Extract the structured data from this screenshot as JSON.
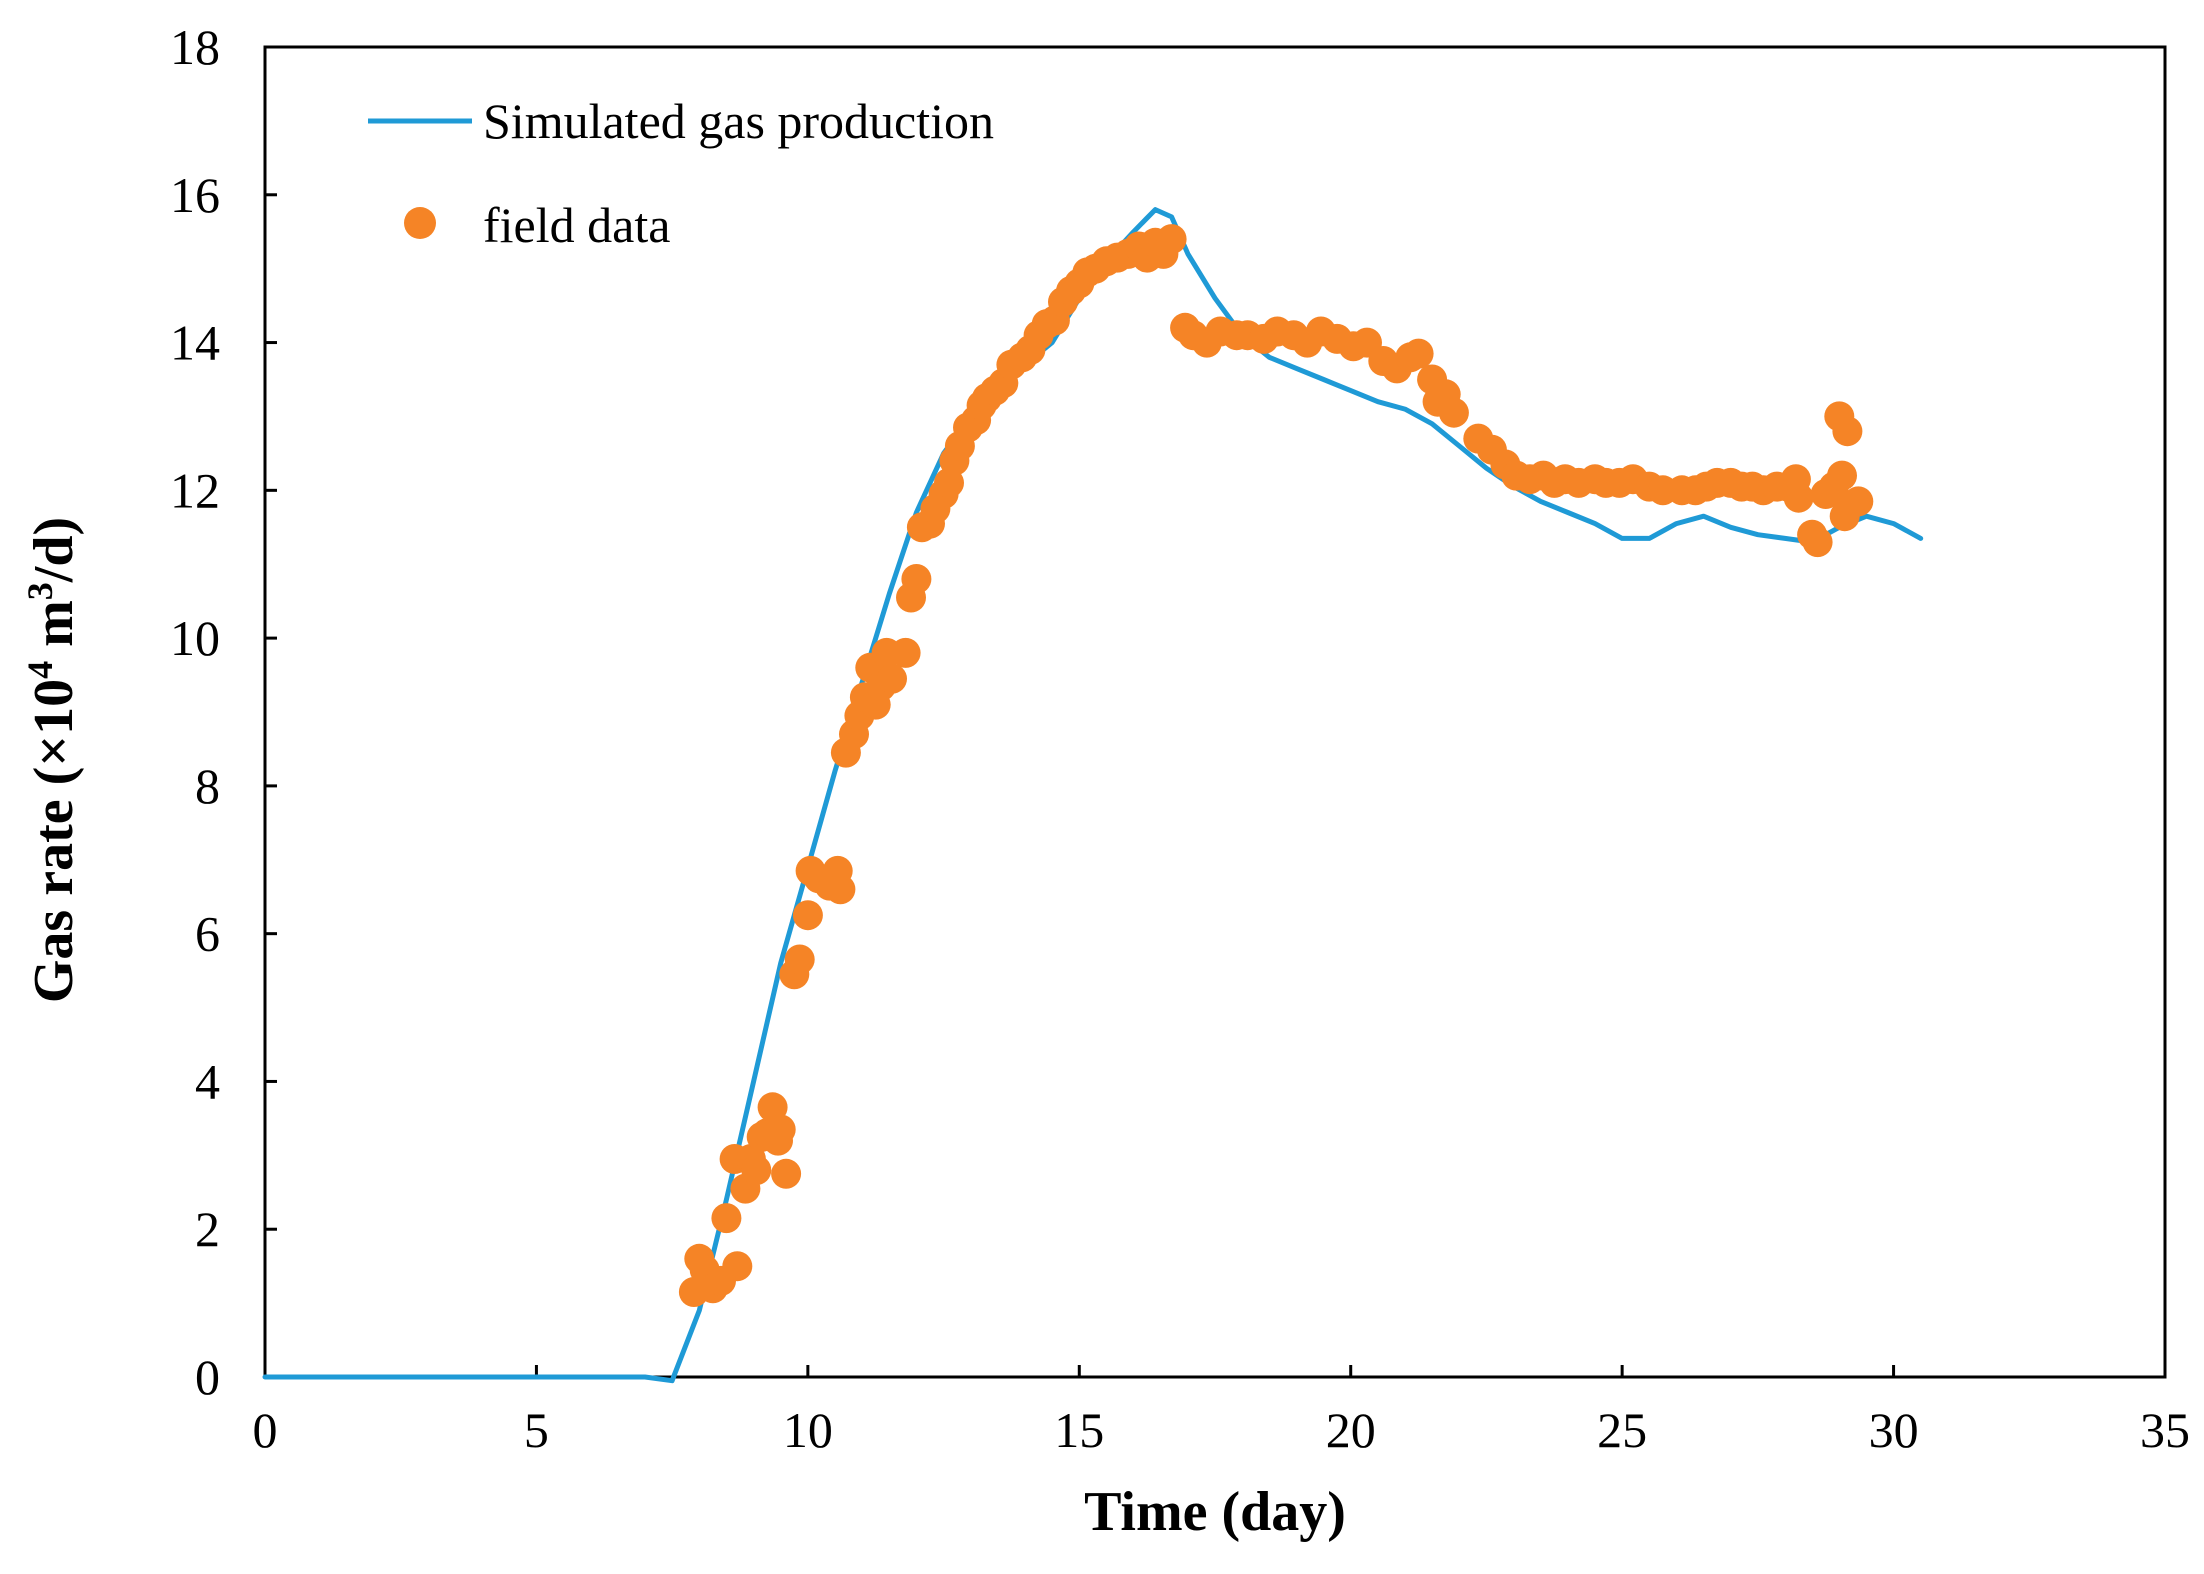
{
  "chart_data": {
    "type": "line",
    "xlabel": "Time (day)",
    "ylabel_main": "Gas rate (×10",
    "ylabel_sup1": "4",
    "ylabel_mid": " m",
    "ylabel_sup2": "3",
    "ylabel_end": "/d)",
    "xlim": [
      0,
      35
    ],
    "ylim": [
      0,
      18
    ],
    "xticks": [
      0,
      5,
      10,
      15,
      20,
      25,
      30,
      35
    ],
    "yticks": [
      0,
      2,
      4,
      6,
      8,
      10,
      12,
      14,
      16,
      18
    ],
    "grid": false,
    "legend_position": "top-left",
    "colors": {
      "simulated": "#1f9ad6",
      "field": "#f58426"
    },
    "series": [
      {
        "name": "Simulated gas production",
        "kind": "line",
        "x": [
          0,
          6.5,
          7.0,
          7.5,
          8.0,
          8.5,
          9.0,
          9.5,
          10.0,
          10.5,
          11.0,
          11.5,
          12.0,
          12.5,
          13.0,
          13.5,
          14.0,
          14.5,
          15.0,
          15.5,
          16.0,
          16.4,
          16.7,
          17.0,
          17.5,
          18.0,
          18.5,
          19.0,
          19.5,
          20.0,
          20.5,
          21.0,
          21.5,
          22.0,
          22.5,
          23.0,
          23.5,
          24.0,
          24.5,
          25.0,
          25.5,
          26.0,
          26.5,
          27.0,
          27.5,
          28.0,
          28.5,
          29.0,
          29.5,
          30.0,
          30.5
        ],
        "y": [
          0,
          0,
          0,
          -0.05,
          0.9,
          2.4,
          4.0,
          5.6,
          6.9,
          8.2,
          9.4,
          10.6,
          11.7,
          12.5,
          13.0,
          13.4,
          13.7,
          14.0,
          14.6,
          15.1,
          15.5,
          15.8,
          15.7,
          15.2,
          14.6,
          14.1,
          13.8,
          13.65,
          13.5,
          13.35,
          13.2,
          13.1,
          12.9,
          12.6,
          12.3,
          12.05,
          11.85,
          11.7,
          11.55,
          11.35,
          11.35,
          11.55,
          11.65,
          11.5,
          11.4,
          11.35,
          11.3,
          11.5,
          11.65,
          11.55,
          11.35
        ]
      },
      {
        "name": "field data",
        "kind": "scatter",
        "x": [
          7.9,
          8.0,
          8.1,
          8.25,
          8.4,
          8.5,
          8.65,
          8.7,
          8.85,
          8.95,
          9.05,
          9.15,
          9.25,
          9.35,
          9.45,
          9.5,
          9.6,
          9.75,
          9.85,
          10.0,
          10.05,
          10.2,
          10.4,
          10.55,
          10.6,
          10.7,
          10.85,
          10.95,
          11.05,
          11.15,
          11.25,
          11.35,
          11.45,
          11.55,
          11.8,
          11.9,
          12.0,
          12.1,
          12.25,
          12.35,
          12.5,
          12.6,
          12.7,
          12.8,
          12.95,
          13.1,
          13.2,
          13.3,
          13.45,
          13.6,
          13.75,
          13.95,
          14.1,
          14.25,
          14.4,
          14.55,
          14.7,
          14.85,
          15.0,
          15.15,
          15.3,
          15.5,
          15.7,
          15.9,
          16.1,
          16.25,
          16.4,
          16.55,
          16.7,
          16.95,
          17.1,
          17.35,
          17.6,
          17.9,
          18.1,
          18.4,
          18.65,
          18.95,
          19.2,
          19.45,
          19.75,
          20.05,
          20.3,
          20.6,
          20.85,
          21.1,
          21.25,
          21.5,
          21.6,
          21.75,
          21.9,
          22.35,
          22.6,
          22.85,
          23.05,
          23.3,
          23.55,
          23.75,
          23.95,
          24.2,
          24.5,
          24.7,
          24.95,
          25.2,
          25.5,
          25.75,
          26.1,
          26.35,
          26.55,
          26.75,
          27.0,
          27.2,
          27.4,
          27.6,
          27.85,
          28.05,
          28.2,
          28.25,
          28.5,
          28.6,
          28.75,
          28.9,
          29.0,
          29.05,
          29.1,
          29.15,
          29.2,
          29.35
        ],
        "y": [
          1.15,
          1.6,
          1.45,
          1.2,
          1.3,
          2.15,
          2.95,
          1.5,
          2.55,
          2.95,
          2.8,
          3.25,
          3.3,
          3.65,
          3.2,
          3.35,
          2.75,
          5.45,
          5.65,
          6.25,
          6.85,
          6.75,
          6.65,
          6.85,
          6.6,
          8.45,
          8.7,
          8.95,
          9.2,
          9.6,
          9.1,
          9.35,
          9.8,
          9.45,
          9.8,
          10.55,
          10.8,
          11.5,
          11.55,
          11.75,
          11.95,
          12.1,
          12.4,
          12.6,
          12.85,
          12.95,
          13.15,
          13.25,
          13.35,
          13.45,
          13.7,
          13.8,
          13.9,
          14.1,
          14.25,
          14.3,
          14.55,
          14.7,
          14.8,
          14.95,
          15.0,
          15.1,
          15.15,
          15.2,
          15.3,
          15.15,
          15.35,
          15.2,
          15.4,
          14.2,
          14.1,
          14.0,
          14.15,
          14.1,
          14.1,
          14.05,
          14.15,
          14.1,
          14.0,
          14.15,
          14.05,
          13.95,
          14.0,
          13.75,
          13.65,
          13.8,
          13.85,
          13.5,
          13.2,
          13.3,
          13.05,
          12.7,
          12.55,
          12.35,
          12.2,
          12.15,
          12.2,
          12.1,
          12.15,
          12.1,
          12.15,
          12.1,
          12.1,
          12.15,
          12.05,
          12.0,
          12.0,
          12.0,
          12.05,
          12.1,
          12.1,
          12.05,
          12.05,
          12.0,
          12.05,
          12.05,
          12.15,
          11.9,
          11.4,
          11.3,
          11.95,
          12.05,
          13.0,
          12.2,
          11.65,
          12.8,
          11.8,
          11.85
        ]
      }
    ]
  }
}
